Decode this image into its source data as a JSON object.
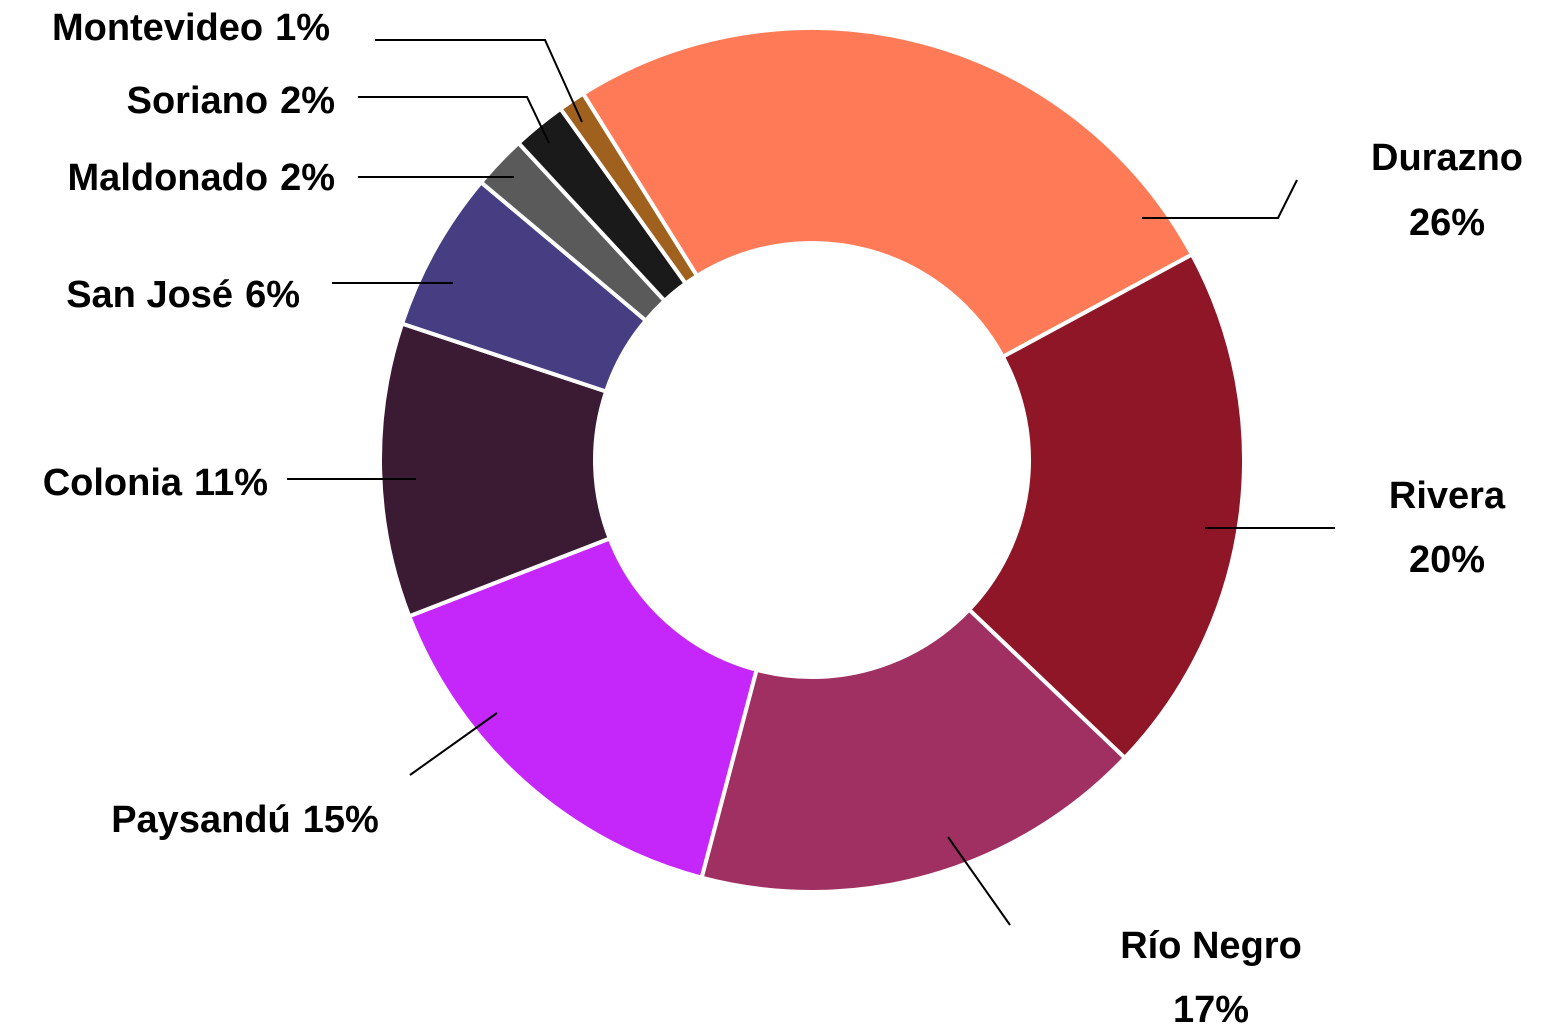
{
  "chart_data": {
    "type": "donut",
    "categories": [
      "Durazno",
      "Rivera",
      "Río Negro",
      "Paysandú",
      "Colonia",
      "San José",
      "Maldonado",
      "Soriano",
      "Montevideo"
    ],
    "values": [
      26,
      20,
      17,
      15,
      11,
      6,
      2,
      2,
      1
    ],
    "value_labels": [
      "26%",
      "20%",
      "17%",
      "15%",
      "11%",
      "6%",
      "2%",
      "2%",
      "1%"
    ],
    "colors": [
      "#ff7b57",
      "#8e1626",
      "#a03062",
      "#c526fa",
      "#3b1a33",
      "#463d82",
      "#5a5a5a",
      "#1a1a1a",
      "#a0611e"
    ]
  }
}
